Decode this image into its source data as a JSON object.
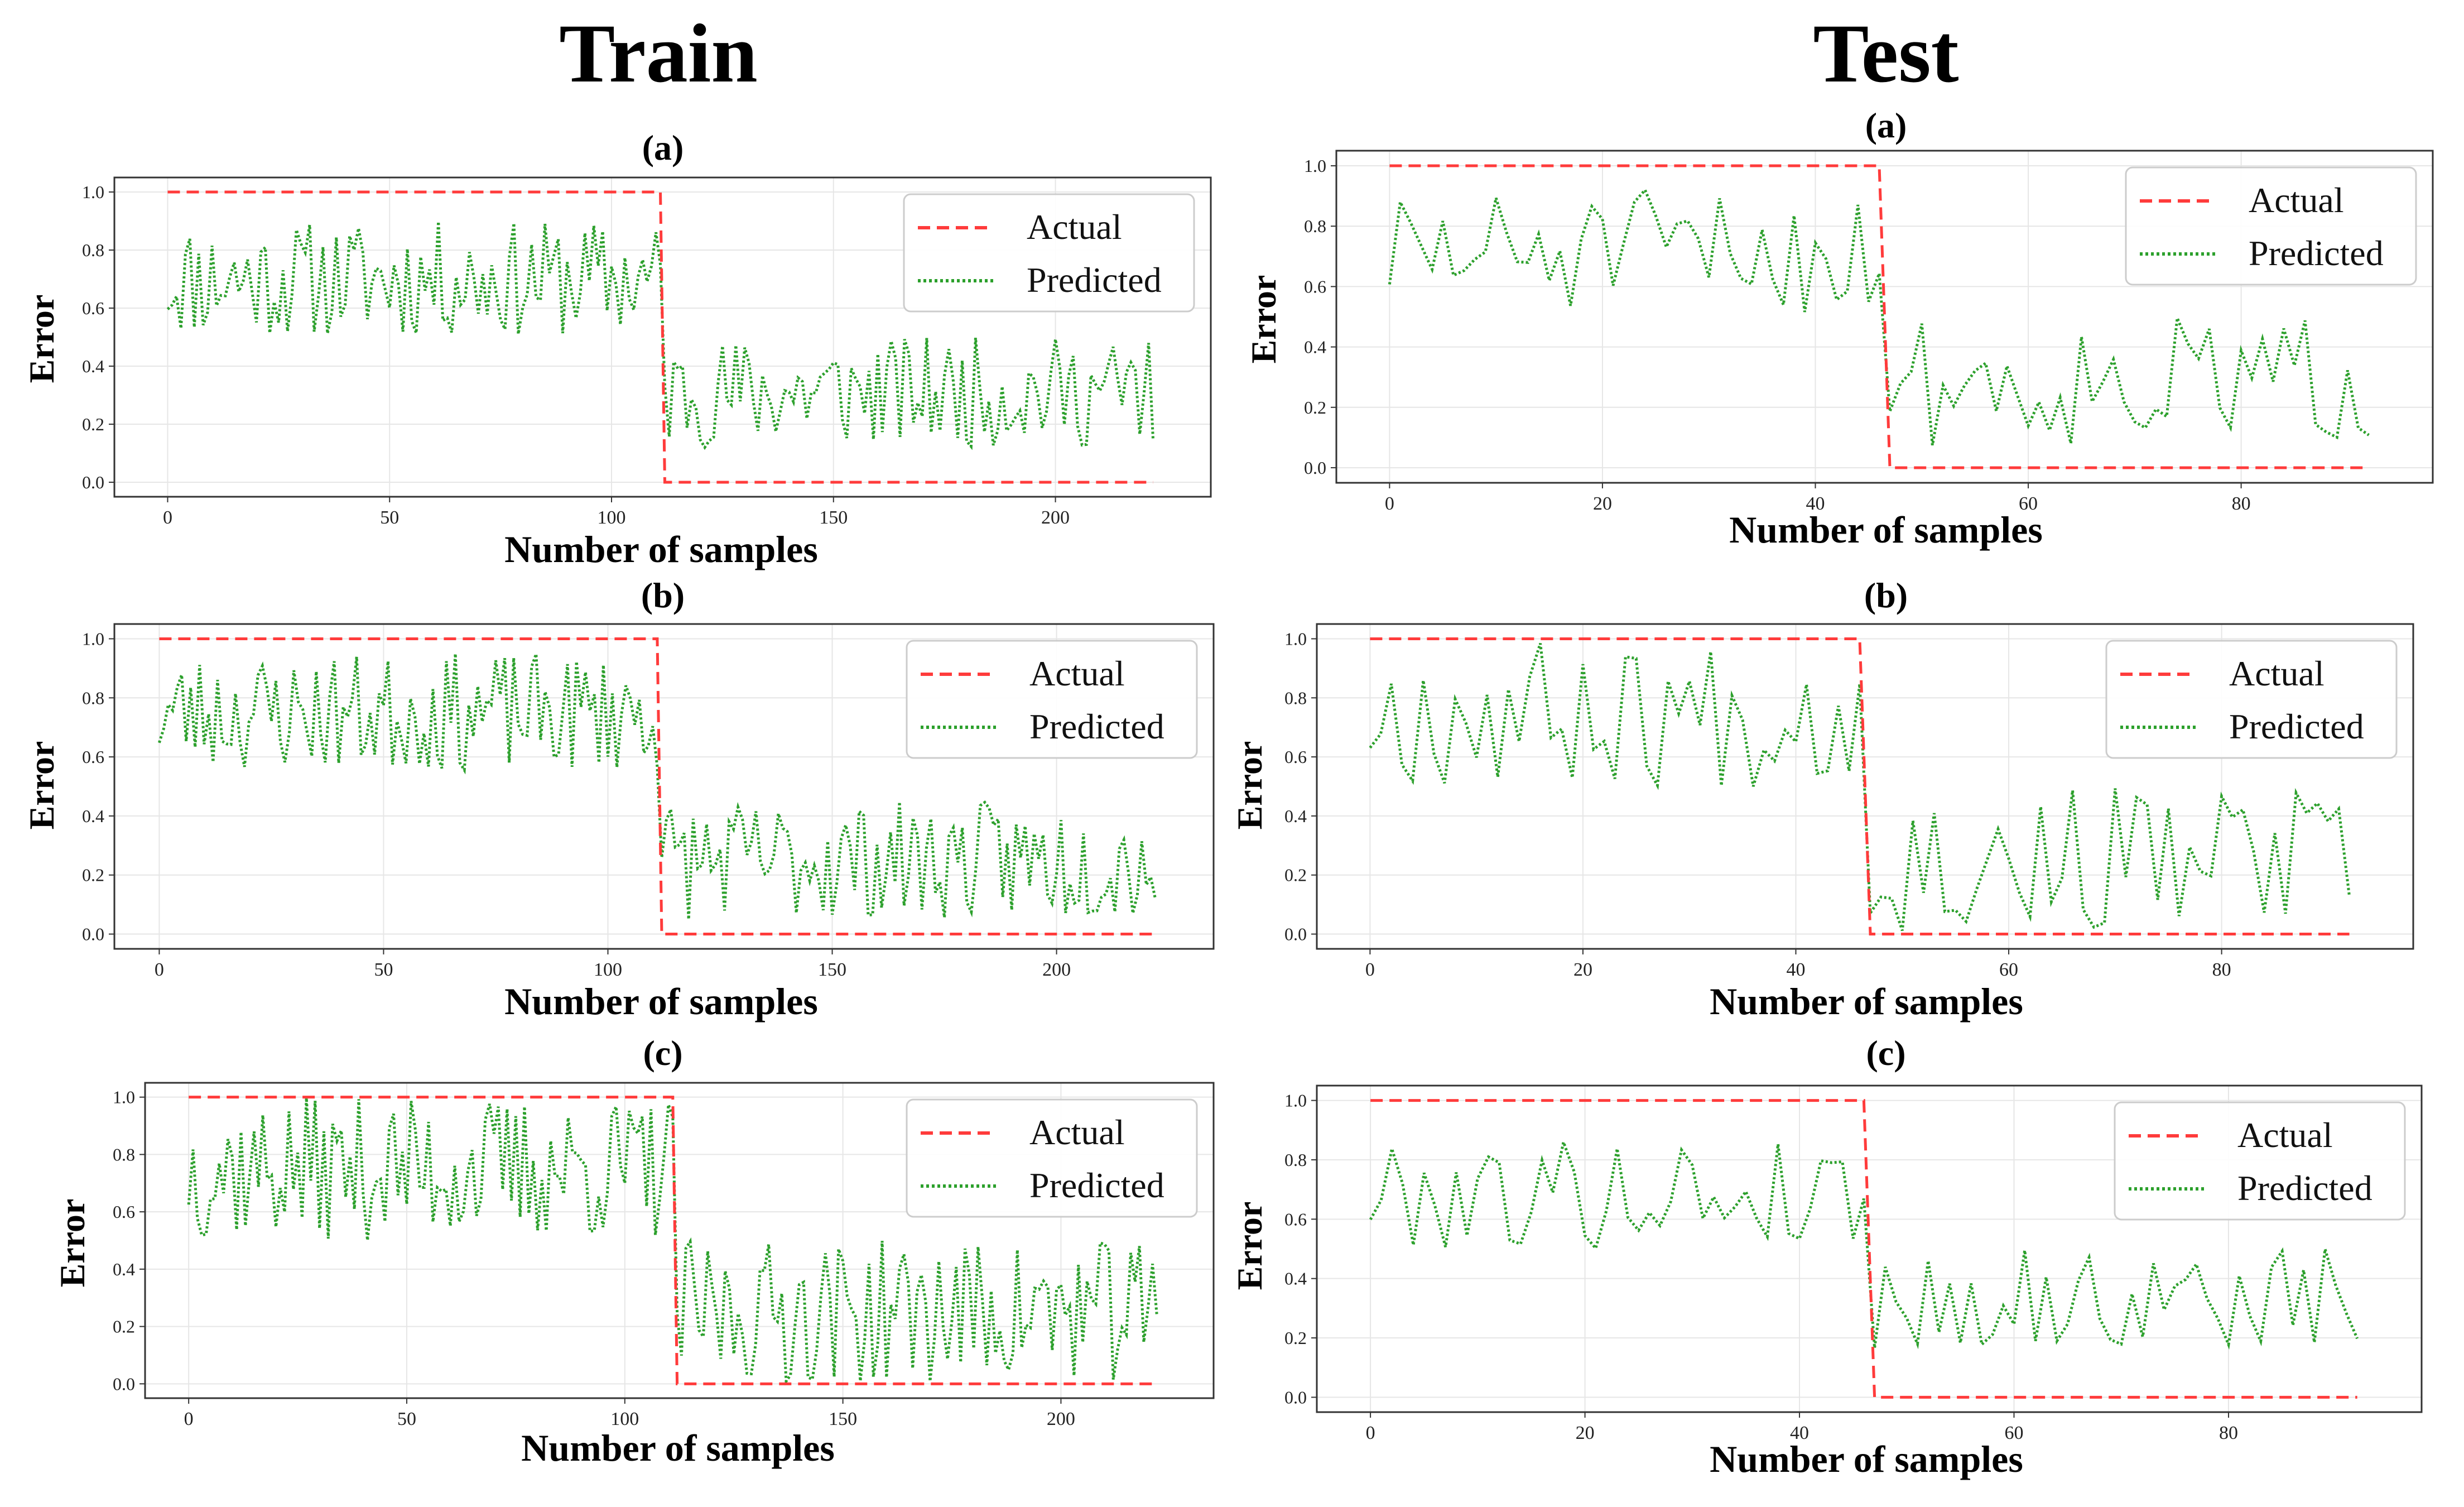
{
  "columns": {
    "train": "Train",
    "test": "Test"
  },
  "common": {
    "xlabel": "Number of samples",
    "ylabel": "Error",
    "legend_actual": "Actual",
    "legend_predicted": "Predicted",
    "actual_color": "#ff3b3b",
    "predicted_color": "#2ca02c"
  },
  "chart_data": [
    {
      "id": "train-a",
      "panel": "(a)",
      "type": "line",
      "n": 223,
      "switch": 111,
      "xlim": [
        -12,
        235
      ],
      "ylim": [
        -0.05,
        1.05
      ],
      "xticks": [
        0,
        50,
        100,
        150,
        200
      ],
      "yticks": [
        0.0,
        0.2,
        0.4,
        0.6,
        0.8,
        1.0
      ],
      "series": [
        {
          "name": "Actual",
          "pattern": "1.0 for samples 0-111, 0.0 after"
        },
        {
          "name": "Predicted",
          "pattern": "noisy 0.5-0.9 for samples 0-111, 0.12-0.5 after",
          "seed": 11,
          "hi_range": [
            0.5,
            0.9
          ],
          "lo_range": [
            0.12,
            0.5
          ]
        }
      ]
    },
    {
      "id": "train-b",
      "panel": "(b)",
      "type": "line",
      "n": 223,
      "switch": 111,
      "xlim": [
        -10,
        235
      ],
      "ylim": [
        -0.05,
        1.05
      ],
      "xticks": [
        0,
        50,
        100,
        150,
        200
      ],
      "yticks": [
        0.0,
        0.2,
        0.4,
        0.6,
        0.8,
        1.0
      ],
      "series": [
        {
          "name": "Actual",
          "pattern": "1.0 for samples 0-111, 0.0 after"
        },
        {
          "name": "Predicted",
          "pattern": "noisy 0.55-0.95 for samples 0-111, 0.05-0.45 after",
          "seed": 23,
          "hi_range": [
            0.55,
            0.95
          ],
          "lo_range": [
            0.05,
            0.45
          ]
        }
      ]
    },
    {
      "id": "train-c",
      "panel": "(c)",
      "type": "line",
      "n": 223,
      "switch": 111,
      "xlim": [
        -10,
        235
      ],
      "ylim": [
        -0.05,
        1.05
      ],
      "xticks": [
        0,
        50,
        100,
        150,
        200
      ],
      "yticks": [
        0.0,
        0.2,
        0.4,
        0.6,
        0.8,
        1.0
      ],
      "series": [
        {
          "name": "Actual",
          "pattern": "1.0 for samples 0-111, 0.0 after"
        },
        {
          "name": "Predicted",
          "pattern": "noisy 0.5-1.0 for samples 0-111, 0.0-0.5 after",
          "seed": 37,
          "hi_range": [
            0.5,
            1.0
          ],
          "lo_range": [
            0.0,
            0.5
          ]
        }
      ]
    },
    {
      "id": "test-a",
      "panel": "(a)",
      "type": "line",
      "n": 93,
      "switch": 46,
      "xlim": [
        -5,
        98
      ],
      "ylim": [
        -0.05,
        1.05
      ],
      "xticks": [
        0,
        20,
        40,
        60,
        80
      ],
      "yticks": [
        0.0,
        0.2,
        0.4,
        0.6,
        0.8,
        1.0
      ],
      "series": [
        {
          "name": "Actual",
          "pattern": "1.0 for samples 0-46, 0.0 after"
        },
        {
          "name": "Predicted",
          "pattern": "noisy 0.5-0.92 for samples 0-46, 0.07-0.5 after",
          "seed": 51,
          "hi_range": [
            0.5,
            0.92
          ],
          "lo_range": [
            0.07,
            0.5
          ]
        }
      ]
    },
    {
      "id": "test-b",
      "panel": "(b)",
      "type": "line",
      "n": 93,
      "switch": 46,
      "xlim": [
        -5,
        98
      ],
      "ylim": [
        -0.05,
        1.05
      ],
      "xticks": [
        0,
        20,
        40,
        60,
        80
      ],
      "yticks": [
        0.0,
        0.2,
        0.4,
        0.6,
        0.8,
        1.0
      ],
      "series": [
        {
          "name": "Actual",
          "pattern": "1.0 for samples 0-46, 0.0 after"
        },
        {
          "name": "Predicted",
          "pattern": "noisy 0.5-1.0 for samples 0-46, 0.0-0.5 after",
          "seed": 67,
          "hi_range": [
            0.5,
            1.0
          ],
          "lo_range": [
            0.0,
            0.5
          ]
        }
      ]
    },
    {
      "id": "test-c",
      "panel": "(c)",
      "type": "line",
      "n": 93,
      "switch": 46,
      "xlim": [
        -5,
        98
      ],
      "ylim": [
        -0.05,
        1.05
      ],
      "xticks": [
        0,
        20,
        40,
        60,
        80
      ],
      "yticks": [
        0.0,
        0.2,
        0.4,
        0.6,
        0.8,
        1.0
      ],
      "series": [
        {
          "name": "Actual",
          "pattern": "1.0 for samples 0-46, 0.0 after"
        },
        {
          "name": "Predicted",
          "pattern": "noisy 0.5-0.87 for samples 0-46, 0.15-0.5 after",
          "seed": 79,
          "hi_range": [
            0.5,
            0.87
          ],
          "lo_range": [
            0.15,
            0.5
          ]
        }
      ]
    }
  ]
}
